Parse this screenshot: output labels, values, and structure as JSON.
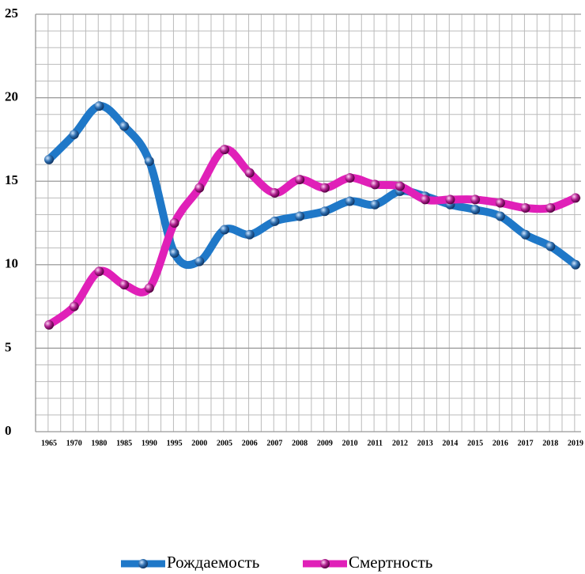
{
  "chart_data": {
    "type": "line",
    "categories": [
      "1965",
      "1970",
      "1980",
      "1985",
      "1990",
      "1995",
      "2000",
      "2005",
      "2006",
      "2007",
      "2008",
      "2009",
      "2010",
      "2011",
      "2012",
      "2013",
      "2014",
      "2015",
      "2016",
      "2017",
      "2018",
      "2019"
    ],
    "series": [
      {
        "name": "Рождаемость",
        "color": "#1f78c8",
        "values": [
          16.3,
          17.8,
          19.5,
          18.3,
          16.2,
          10.7,
          10.2,
          12.1,
          11.8,
          12.6,
          12.9,
          13.2,
          13.8,
          13.6,
          14.4,
          14.1,
          13.6,
          13.3,
          12.9,
          11.8,
          11.1,
          10.0
        ]
      },
      {
        "name": "Смертность",
        "color": "#e020b8",
        "values": [
          6.4,
          7.5,
          9.6,
          8.8,
          8.6,
          12.5,
          14.6,
          16.9,
          15.5,
          14.3,
          15.1,
          14.6,
          15.2,
          14.8,
          14.7,
          13.9,
          13.9,
          13.9,
          13.7,
          13.4,
          13.4,
          14.0
        ]
      }
    ],
    "ylim": [
      0,
      25
    ],
    "yticks": [
      0,
      5,
      10,
      15,
      20,
      25
    ],
    "grid": true,
    "legend": "bottom"
  }
}
